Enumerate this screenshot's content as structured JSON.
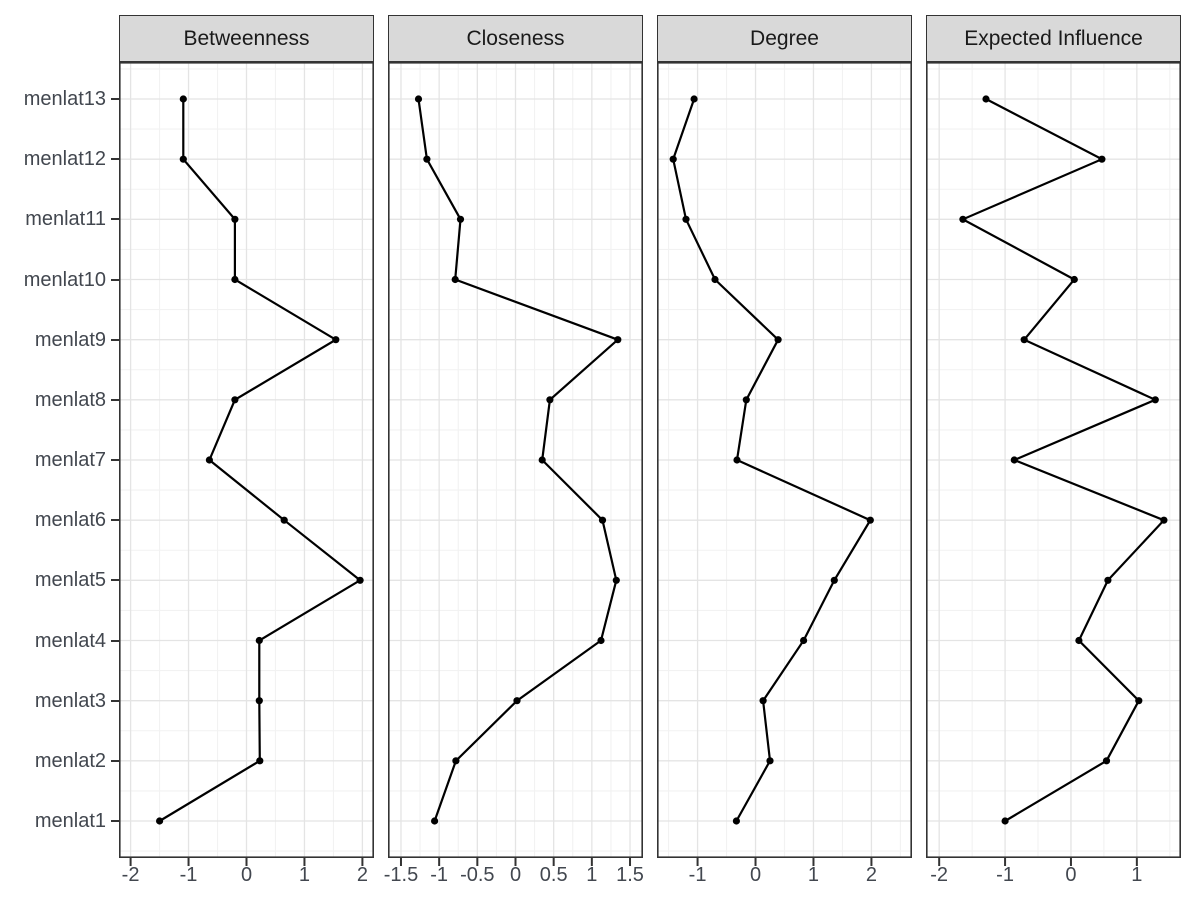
{
  "figure": {
    "title": "",
    "colors": {
      "background": "#ffffff",
      "strip_bg": "#d9d9d9",
      "strip_border": "#333333",
      "panel_bg": "#ffffff",
      "panel_border": "#333333",
      "grid_major": "#e4e4e4",
      "grid_minor": "#f2f2f2",
      "series": "#000000",
      "tick_mark": "#333333",
      "tick_text": "#42474f",
      "strip_text": "#1a1a1a"
    }
  },
  "chart_data": {
    "type": "line",
    "description": "Faceted network centrality plot: standardized centrality value (x) per node (y), points connected by lines, one panel per centrality measure",
    "grid": "on",
    "legend": "none",
    "categories_bottom_to_top": [
      "menlat1",
      "menlat2",
      "menlat3",
      "menlat4",
      "menlat5",
      "menlat6",
      "menlat7",
      "menlat8",
      "menlat9",
      "menlat10",
      "menlat11",
      "menlat12",
      "menlat13"
    ],
    "panels": [
      {
        "title": "Betweenness",
        "xlim": [
          -2.2,
          2.2
        ],
        "ticks": [
          {
            "value": -2,
            "label": "-2"
          },
          {
            "value": -1,
            "label": "-1"
          },
          {
            "value": 0,
            "label": "0"
          },
          {
            "value": 1,
            "label": "1"
          },
          {
            "value": 2,
            "label": "2"
          }
        ],
        "minor_ticks": [
          -1.5,
          -0.5,
          0.5,
          1.5
        ],
        "values": [
          -1.5,
          0.23,
          0.22,
          0.22,
          1.96,
          0.65,
          -0.64,
          -0.2,
          1.54,
          -0.2,
          -0.2,
          -1.09,
          -1.09
        ]
      },
      {
        "title": "Closeness",
        "xlim": [
          -1.67,
          1.67
        ],
        "ticks": [
          {
            "value": -1.5,
            "label": "-1.5"
          },
          {
            "value": -1,
            "label": "-1"
          },
          {
            "value": -0.5,
            "label": "-0.5"
          },
          {
            "value": 0,
            "label": "0"
          },
          {
            "value": 0.5,
            "label": "0.5"
          },
          {
            "value": 1,
            "label": "1"
          },
          {
            "value": 1.5,
            "label": "1.5"
          }
        ],
        "minor_ticks": [
          -1.25,
          -0.75,
          -0.25,
          0.25,
          0.75,
          1.25
        ],
        "values": [
          -1.06,
          -0.78,
          0.02,
          1.12,
          1.32,
          1.14,
          0.35,
          0.45,
          1.34,
          -0.79,
          -0.72,
          -1.16,
          -1.27
        ]
      },
      {
        "title": "Degree",
        "xlim": [
          -1.7,
          2.7
        ],
        "ticks": [
          {
            "value": -1,
            "label": "-1"
          },
          {
            "value": 0,
            "label": "0"
          },
          {
            "value": 1,
            "label": "1"
          },
          {
            "value": 2,
            "label": "2"
          }
        ],
        "minor_ticks": [
          -1.5,
          -0.5,
          0.5,
          1.5,
          2.5
        ],
        "values": [
          -0.33,
          0.25,
          0.13,
          0.83,
          1.36,
          1.98,
          -0.32,
          -0.16,
          0.39,
          -0.7,
          -1.2,
          -1.42,
          -1.06
        ]
      },
      {
        "title": "Expected Influence",
        "xlim": [
          -2.2,
          1.67
        ],
        "ticks": [
          {
            "value": -2,
            "label": "-2"
          },
          {
            "value": -1,
            "label": "-1"
          },
          {
            "value": 0,
            "label": "0"
          },
          {
            "value": 1,
            "label": "1"
          }
        ],
        "minor_ticks": [
          -1.5,
          -0.5,
          0.5,
          1.5
        ],
        "values": [
          -1.0,
          0.54,
          1.03,
          0.12,
          0.56,
          1.41,
          -0.86,
          1.28,
          -0.71,
          0.05,
          -1.64,
          0.47,
          -1.29
        ]
      }
    ]
  }
}
